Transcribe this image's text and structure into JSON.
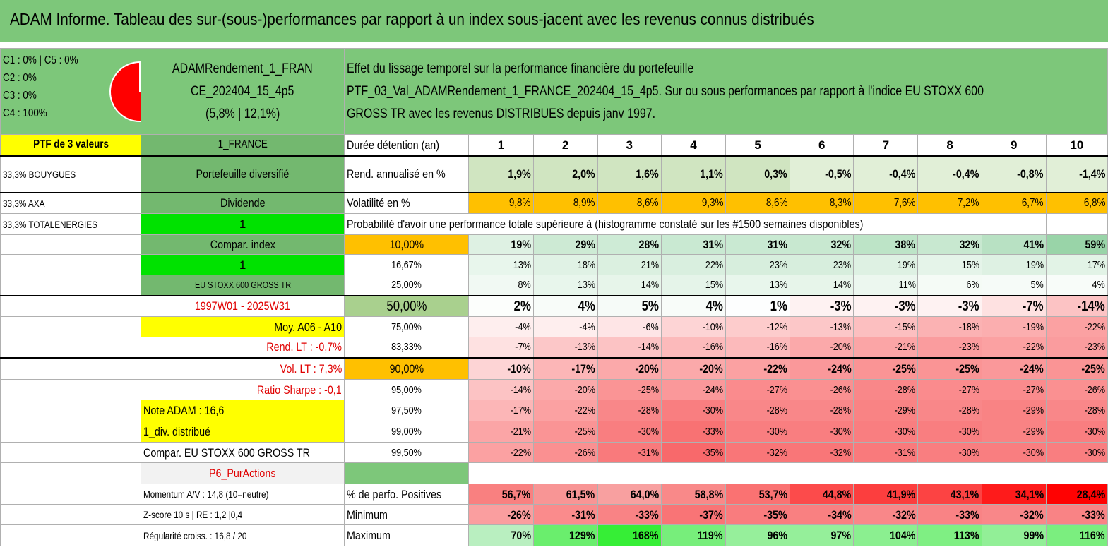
{
  "title": "ADAM Informe. Tableau des sur-(sous-)performances par rapport à un index sous-jacent avec les revenus connus distribués",
  "header": {
    "legend": [
      "C1 : 0% | C5 : 0%",
      "C2 : 0%",
      "C3 : 0%",
      "C4 : 100%"
    ],
    "pie_color": "#ff0000",
    "portfolio_name_1": "ADAMRendement_1_FRAN",
    "portfolio_name_2": "CE_202404_15_4p5",
    "portfolio_stats": "(5,8% | 12,1%)",
    "desc_1": "Effet du lissage temporel sur la performance financière du portefeuille",
    "desc_2": "PTF_03_Val_ADAMRendement_1_FRANCE_202404_15_4p5. Sur ou sous performances par rapport à l'indice EU STOXX 600",
    "desc_3": "GROSS TR avec les revenus DISTRIBUES depuis janv 1997."
  },
  "left": {
    "ptf_count": "PTF de 3 valeurs",
    "holdings": [
      "33,3% BOUYGUES",
      "33,3% AXA",
      "33,3% TOTALENERGIES"
    ],
    "region": "1_FRANCE",
    "p_diversified": "Portefeuille diversifié",
    "dividend_label": "Dividende",
    "dividend_value": "1",
    "compar_index_label": "Compar. index",
    "compar_index_value": "1",
    "index_name": "EU STOXX 600 GROSS TR",
    "period": "1997W01 - 2025W31",
    "moy": "Moy. A06 - A10",
    "rend_lt": "Rend. LT : -0,7%",
    "vol_lt": "Vol. LT : 7,3%",
    "sharpe": "Ratio Sharpe : -0,1",
    "note": "Note ADAM : 16,6",
    "div_distrib": "1_div. distribué",
    "compar_full": "Compar. EU STOXX 600 GROSS TR",
    "p6": "P6_PurActions",
    "momentum": "Momentum A/V : 14,8 (10=neutre)",
    "zscore": "Z-score 10 s | RE : 1,2 |0,4",
    "regularite": "Régularité croiss. : 16,8 / 20"
  },
  "table": {
    "duree_label": "Durée détention (an)",
    "years": [
      "1",
      "2",
      "3",
      "4",
      "5",
      "6",
      "7",
      "8",
      "9",
      "10"
    ],
    "rend_label": "Rend. annualisé en %",
    "rend": [
      "1,9%",
      "2,0%",
      "1,6%",
      "1,1%",
      "0,3%",
      "-0,5%",
      "-0,4%",
      "-0,4%",
      "-0,8%",
      "-1,4%"
    ],
    "vol_label": "Volatilité en %",
    "vol": [
      "9,8%",
      "8,9%",
      "8,6%",
      "9,3%",
      "8,6%",
      "8,3%",
      "7,6%",
      "7,2%",
      "6,7%",
      "6,8%"
    ],
    "prob_label": "Probabilité d'avoir une performance totale supérieure à (histogramme constaté sur les #1500 semaines disponibles)",
    "quantiles": [
      {
        "p": "10,00%",
        "v": [
          "19%",
          "29%",
          "28%",
          "31%",
          "31%",
          "32%",
          "38%",
          "32%",
          "41%",
          "59%"
        ]
      },
      {
        "p": "16,67%",
        "v": [
          "13%",
          "18%",
          "21%",
          "22%",
          "23%",
          "23%",
          "19%",
          "15%",
          "19%",
          "17%"
        ]
      },
      {
        "p": "25,00%",
        "v": [
          "8%",
          "13%",
          "14%",
          "15%",
          "13%",
          "14%",
          "11%",
          "6%",
          "5%",
          "4%"
        ]
      },
      {
        "p": "50,00%",
        "v": [
          "2%",
          "4%",
          "5%",
          "4%",
          "1%",
          "-3%",
          "-3%",
          "-3%",
          "-7%",
          "-14%"
        ]
      },
      {
        "p": "75,00%",
        "v": [
          "-4%",
          "-4%",
          "-6%",
          "-10%",
          "-12%",
          "-13%",
          "-15%",
          "-18%",
          "-19%",
          "-22%"
        ]
      },
      {
        "p": "83,33%",
        "v": [
          "-7%",
          "-13%",
          "-14%",
          "-16%",
          "-16%",
          "-20%",
          "-21%",
          "-23%",
          "-22%",
          "-23%"
        ]
      },
      {
        "p": "90,00%",
        "v": [
          "-10%",
          "-17%",
          "-20%",
          "-20%",
          "-22%",
          "-24%",
          "-25%",
          "-25%",
          "-24%",
          "-25%"
        ]
      },
      {
        "p": "95,00%",
        "v": [
          "-14%",
          "-20%",
          "-25%",
          "-24%",
          "-27%",
          "-26%",
          "-28%",
          "-27%",
          "-27%",
          "-26%"
        ]
      },
      {
        "p": "97,50%",
        "v": [
          "-17%",
          "-22%",
          "-28%",
          "-30%",
          "-28%",
          "-28%",
          "-29%",
          "-28%",
          "-29%",
          "-28%"
        ]
      },
      {
        "p": "99,00%",
        "v": [
          "-21%",
          "-25%",
          "-30%",
          "-33%",
          "-30%",
          "-30%",
          "-30%",
          "-30%",
          "-29%",
          "-30%"
        ]
      },
      {
        "p": "99,50%",
        "v": [
          "-22%",
          "-26%",
          "-31%",
          "-35%",
          "-32%",
          "-32%",
          "-31%",
          "-30%",
          "-30%",
          "-30%"
        ]
      }
    ],
    "pos_label": "% de perfo. Positives",
    "pos": [
      "56,7%",
      "61,5%",
      "64,0%",
      "58,8%",
      "53,7%",
      "44,8%",
      "41,9%",
      "43,1%",
      "34,1%",
      "28,4%"
    ],
    "min_label": "Minimum",
    "min": [
      "-26%",
      "-31%",
      "-33%",
      "-37%",
      "-35%",
      "-34%",
      "-32%",
      "-33%",
      "-32%",
      "-33%"
    ],
    "max_label": "Maximum",
    "max": [
      "70%",
      "129%",
      "168%",
      "119%",
      "96%",
      "97%",
      "104%",
      "113%",
      "99%",
      "116%"
    ]
  },
  "colors": {
    "header_green": "#7dc77a",
    "dark_green": "#73b86f",
    "bright_green": "#00e200",
    "yellow": "#ffff00",
    "orange": "#ffc000",
    "positive_max": "#63be7b",
    "negative_max": "#f8696b"
  }
}
